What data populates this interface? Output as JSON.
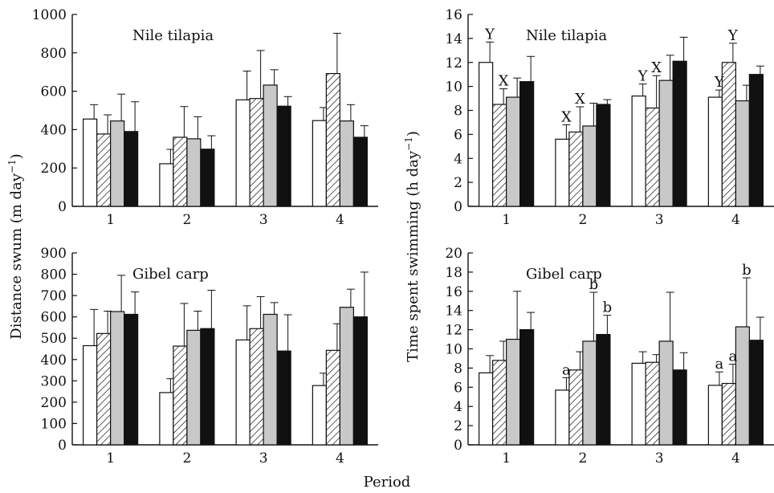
{
  "figure": {
    "left_ylabel": "Distance swum (m day",
    "right_ylabel": "Time spent swimming (h day",
    "ylabel_superscript": "−1",
    "ylabel_close": ")",
    "xlabel": "Period"
  },
  "chart_data": [
    {
      "type": "bar",
      "title": "Nile tilapia",
      "categories": [
        "1",
        "2",
        "3",
        "4"
      ],
      "ylim": [
        0,
        1000
      ],
      "yticks": [
        0,
        200,
        400,
        600,
        800,
        1000
      ],
      "series": [
        {
          "pattern": "white",
          "values": [
            455,
            222,
            555,
            447
          ],
          "errors": [
            75,
            75,
            150,
            68
          ]
        },
        {
          "pattern": "hatched",
          "values": [
            377,
            360,
            562,
            692
          ],
          "errors": [
            100,
            160,
            250,
            210
          ]
        },
        {
          "pattern": "grey",
          "values": [
            445,
            352,
            632,
            445
          ],
          "errors": [
            140,
            115,
            80,
            85
          ]
        },
        {
          "pattern": "black",
          "values": [
            390,
            298,
            522,
            360
          ],
          "errors": [
            155,
            70,
            50,
            60
          ]
        }
      ],
      "annotations": []
    },
    {
      "type": "bar",
      "title": "Nile tilapia",
      "categories": [
        "1",
        "2",
        "3",
        "4"
      ],
      "ylim": [
        0,
        16
      ],
      "yticks": [
        0,
        2,
        4,
        6,
        8,
        10,
        12,
        14,
        16
      ],
      "series": [
        {
          "pattern": "white",
          "values": [
            12.0,
            5.6,
            9.2,
            9.1
          ],
          "errors": [
            1.7,
            1.2,
            1.0,
            0.6
          ]
        },
        {
          "pattern": "hatched",
          "values": [
            8.5,
            6.2,
            8.2,
            12.0
          ],
          "errors": [
            1.3,
            2.1,
            2.7,
            1.6
          ]
        },
        {
          "pattern": "grey",
          "values": [
            9.1,
            6.7,
            10.5,
            8.8
          ],
          "errors": [
            1.6,
            1.9,
            2.1,
            1.3
          ]
        },
        {
          "pattern": "black",
          "values": [
            10.4,
            8.5,
            12.1,
            11.0
          ],
          "errors": [
            2.1,
            0.4,
            2.0,
            0.7
          ]
        }
      ],
      "annotations": [
        {
          "category": 0,
          "series": 0,
          "text": "Y"
        },
        {
          "category": 0,
          "series": 1,
          "text": "X"
        },
        {
          "category": 1,
          "series": 0,
          "text": "X"
        },
        {
          "category": 1,
          "series": 1,
          "text": "X"
        },
        {
          "category": 2,
          "series": 0,
          "text": "Y"
        },
        {
          "category": 2,
          "series": 1,
          "text": "X"
        },
        {
          "category": 3,
          "series": 0,
          "text": "Y"
        },
        {
          "category": 3,
          "series": 1,
          "text": "Y"
        }
      ]
    },
    {
      "type": "bar",
      "title": "Gibel carp",
      "categories": [
        "1",
        "2",
        "3",
        "4"
      ],
      "ylim": [
        0,
        900
      ],
      "yticks": [
        0,
        100,
        200,
        300,
        400,
        500,
        600,
        700,
        800,
        900
      ],
      "series": [
        {
          "pattern": "white",
          "values": [
            465,
            245,
            492,
            278
          ],
          "errors": [
            170,
            65,
            160,
            58
          ]
        },
        {
          "pattern": "hatched",
          "values": [
            522,
            463,
            545,
            443
          ],
          "errors": [
            105,
            200,
            150,
            125
          ]
        },
        {
          "pattern": "grey",
          "values": [
            625,
            537,
            612,
            645
          ],
          "errors": [
            170,
            90,
            55,
            85
          ]
        },
        {
          "pattern": "black",
          "values": [
            612,
            545,
            440,
            600
          ],
          "errors": [
            105,
            180,
            170,
            210
          ]
        }
      ],
      "annotations": []
    },
    {
      "type": "bar",
      "title": "Gibel carp",
      "categories": [
        "1",
        "2",
        "3",
        "4"
      ],
      "ylim": [
        0,
        20
      ],
      "yticks": [
        0,
        2,
        4,
        6,
        8,
        10,
        12,
        14,
        16,
        18,
        20
      ],
      "series": [
        {
          "pattern": "white",
          "values": [
            7.5,
            5.7,
            8.5,
            6.2
          ],
          "errors": [
            1.8,
            1.3,
            1.2,
            1.4
          ]
        },
        {
          "pattern": "hatched",
          "values": [
            8.8,
            7.8,
            8.6,
            6.4
          ],
          "errors": [
            2.0,
            1.9,
            0.8,
            2.0
          ]
        },
        {
          "pattern": "grey",
          "values": [
            11.0,
            10.8,
            10.8,
            12.3
          ],
          "errors": [
            5.0,
            5.1,
            5.1,
            5.1
          ]
        },
        {
          "pattern": "black",
          "values": [
            12.0,
            11.5,
            7.8,
            10.9
          ],
          "errors": [
            1.8,
            2.0,
            1.8,
            2.4
          ]
        }
      ],
      "annotations": [
        {
          "category": 1,
          "series": 0,
          "text": "a"
        },
        {
          "category": 1,
          "series": 2,
          "text": "b"
        },
        {
          "category": 1,
          "series": 3,
          "text": "b"
        },
        {
          "category": 3,
          "series": 0,
          "text": "a"
        },
        {
          "category": 3,
          "series": 1,
          "text": "a"
        },
        {
          "category": 3,
          "series": 2,
          "text": "b"
        }
      ]
    }
  ]
}
